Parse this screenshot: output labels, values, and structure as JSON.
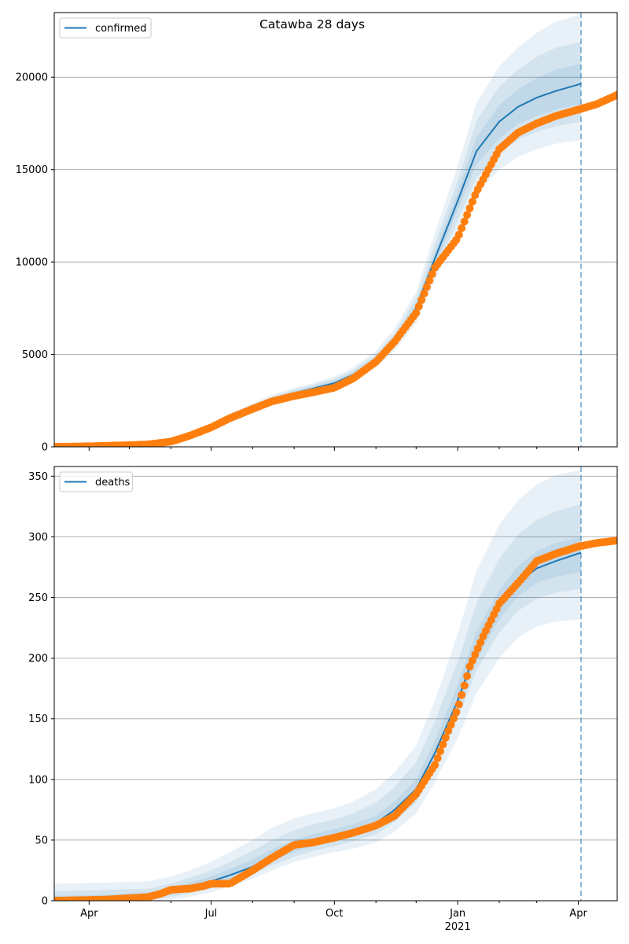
{
  "figure": {
    "title": "Catawba 28 days",
    "colors": {
      "line": "#1f77b4",
      "band": "#1f77b4",
      "points": "#ff7f0e",
      "grid": "#b0b0b0",
      "vline": "#1f77b4"
    }
  },
  "chart_data": [
    {
      "type": "line",
      "legend": {
        "label": "confirmed",
        "placement": "top-left"
      },
      "x_range": [
        "2020-03-06",
        "2021-04-30"
      ],
      "ylim": [
        0,
        23500
      ],
      "yticks": [
        0,
        5000,
        10000,
        15000,
        20000
      ],
      "ytick_labels": [
        "0",
        "5000",
        "10000",
        "15000",
        "20000"
      ],
      "grid": "y",
      "forecast_start": "2021-04-03",
      "series": [
        {
          "name": "confirmed",
          "kind": "model",
          "x": [
            "2020-03-06",
            "2020-04-15",
            "2020-05-15",
            "2020-06-01",
            "2020-06-15",
            "2020-07-01",
            "2020-07-15",
            "2020-08-01",
            "2020-08-15",
            "2020-09-01",
            "2020-09-15",
            "2020-10-01",
            "2020-10-15",
            "2020-11-01",
            "2020-11-15",
            "2020-12-01",
            "2020-12-15",
            "2021-01-01",
            "2021-01-15",
            "2021-02-01",
            "2021-02-15",
            "2021-03-01",
            "2021-03-15",
            "2021-04-03"
          ],
          "y": [
            20,
            40,
            80,
            250,
            550,
            1000,
            1500,
            2050,
            2500,
            2900,
            3150,
            3450,
            3900,
            4700,
            5750,
            7500,
            10200,
            13300,
            16000,
            17600,
            18400,
            18900,
            19250,
            19650
          ],
          "bands": [
            {
              "lower": [
                0,
                0,
                40,
                170,
                430,
                850,
                1300,
                1800,
                2250,
                2650,
                2900,
                3200,
                3600,
                4300,
                5200,
                6700,
                9000,
                11600,
                13700,
                15000,
                15700,
                16100,
                16400,
                16600
              ],
              "upper": [
                150,
                180,
                230,
                420,
                780,
                1250,
                1800,
                2350,
                2800,
                3200,
                3450,
                3800,
                4300,
                5200,
                6400,
                8400,
                11600,
                15200,
                18600,
                20600,
                21600,
                22400,
                23000,
                23400
              ]
            },
            {
              "lower": [
                0,
                10,
                50,
                190,
                460,
                890,
                1350,
                1870,
                2320,
                2720,
                2980,
                3270,
                3700,
                4430,
                5380,
                7000,
                9450,
                12250,
                14550,
                15900,
                16600,
                17050,
                17350,
                17600
              ],
              "upper": [
                100,
                120,
                170,
                360,
                700,
                1160,
                1700,
                2250,
                2700,
                3100,
                3350,
                3680,
                4150,
                5000,
                6150,
                8050,
                11000,
                14400,
                17650,
                19500,
                20400,
                21100,
                21600,
                21900
              ]
            },
            {
              "lower": [
                5,
                20,
                60,
                210,
                490,
                930,
                1400,
                1940,
                2390,
                2790,
                3050,
                3340,
                3780,
                4550,
                5550,
                7250,
                9800,
                12800,
                15300,
                16700,
                17450,
                17900,
                18250,
                18550
              ],
              "upper": [
                60,
                80,
                130,
                310,
                640,
                1090,
                1620,
                2180,
                2620,
                3020,
                3260,
                3580,
                4040,
                4860,
                5950,
                7750,
                10550,
                13800,
                16750,
                18500,
                19350,
                19950,
                20400,
                20750
              ]
            }
          ]
        },
        {
          "name": "",
          "kind": "observed",
          "x": [
            "2020-03-06",
            "2020-04-01",
            "2020-04-15",
            "2020-05-01",
            "2020-05-15",
            "2020-06-01",
            "2020-06-15",
            "2020-07-01",
            "2020-07-15",
            "2020-08-01",
            "2020-08-15",
            "2020-09-01",
            "2020-09-15",
            "2020-10-01",
            "2020-10-15",
            "2020-11-01",
            "2020-11-15",
            "2020-12-01",
            "2020-12-15",
            "2021-01-01",
            "2021-01-15",
            "2021-02-01",
            "2021-02-15",
            "2021-03-01",
            "2021-03-15",
            "2021-04-01",
            "2021-04-15",
            "2021-04-30"
          ],
          "y": [
            0,
            30,
            60,
            90,
            130,
            280,
            600,
            1050,
            1550,
            2050,
            2450,
            2750,
            2950,
            3200,
            3700,
            4600,
            5700,
            7250,
            9700,
            11300,
            13800,
            16100,
            17000,
            17500,
            17900,
            18250,
            18550,
            19050
          ]
        }
      ]
    },
    {
      "type": "line",
      "legend": {
        "label": "deaths",
        "placement": "top-left"
      },
      "x_range": [
        "2020-03-06",
        "2021-04-30"
      ],
      "x_ticks": [
        "2020-04-01",
        "2020-07-01",
        "2020-10-01",
        "2021-01-01",
        "2021-04-01"
      ],
      "x_tick_labels": [
        "Apr",
        "Jul",
        "Oct",
        "Jan",
        "Apr"
      ],
      "x_year_label": {
        "at": "2021-01-01",
        "text": "2021"
      },
      "ylim": [
        0,
        358
      ],
      "yticks": [
        0,
        50,
        100,
        150,
        200,
        250,
        300,
        350
      ],
      "ytick_labels": [
        "0",
        "50",
        "100",
        "150",
        "200",
        "250",
        "300",
        "350"
      ],
      "grid": "y",
      "forecast_start": "2021-04-03",
      "series": [
        {
          "name": "deaths",
          "kind": "model",
          "x": [
            "2020-03-06",
            "2020-04-15",
            "2020-05-15",
            "2020-06-01",
            "2020-06-15",
            "2020-07-01",
            "2020-07-15",
            "2020-08-01",
            "2020-08-15",
            "2020-09-01",
            "2020-09-15",
            "2020-10-01",
            "2020-10-15",
            "2020-11-01",
            "2020-11-15",
            "2020-12-01",
            "2020-12-15",
            "2021-01-01",
            "2021-01-15",
            "2021-02-01",
            "2021-02-15",
            "2021-03-01",
            "2021-03-15",
            "2021-04-03"
          ],
          "y": [
            1,
            2,
            4,
            8,
            12,
            16,
            21,
            28,
            36,
            44,
            49,
            53,
            57,
            64,
            75,
            92,
            122,
            165,
            208,
            242,
            262,
            274,
            280,
            287
          ],
          "bands": [
            {
              "lower": [
                0,
                0,
                0,
                1,
                3,
                7,
                12,
                18,
                25,
                32,
                36,
                40,
                43,
                48,
                57,
                72,
                98,
                134,
                171,
                200,
                217,
                226,
                230,
                232
              ],
              "upper": [
                14,
                15,
                16,
                20,
                25,
                32,
                40,
                50,
                60,
                68,
                72,
                76,
                82,
                92,
                106,
                128,
                165,
                220,
                272,
                310,
                330,
                343,
                351,
                355
              ]
            },
            {
              "lower": [
                0,
                0,
                1,
                3,
                6,
                10,
                15,
                22,
                29,
                36,
                41,
                45,
                49,
                55,
                65,
                81,
                110,
                150,
                190,
                221,
                239,
                249,
                254,
                257
              ],
              "upper": [
                8,
                9,
                10,
                14,
                19,
                25,
                32,
                41,
                50,
                58,
                63,
                67,
                72,
                81,
                94,
                114,
                148,
                197,
                245,
                282,
                302,
                314,
                321,
                327
              ]
            },
            {
              "lower": [
                0,
                1,
                2,
                5,
                9,
                13,
                18,
                25,
                33,
                40,
                45,
                49,
                53,
                60,
                70,
                87,
                116,
                158,
                199,
                232,
                251,
                262,
                267,
                271
              ],
              "upper": [
                4,
                5,
                7,
                11,
                15,
                20,
                26,
                34,
                42,
                50,
                55,
                59,
                63,
                70,
                82,
                100,
                132,
                178,
                222,
                256,
                276,
                288,
                295,
                300
              ]
            }
          ]
        },
        {
          "name": "",
          "kind": "observed",
          "x": [
            "2020-03-06",
            "2020-04-15",
            "2020-05-15",
            "2020-05-25",
            "2020-06-01",
            "2020-06-15",
            "2020-06-25",
            "2020-07-01",
            "2020-07-15",
            "2020-08-01",
            "2020-08-15",
            "2020-09-01",
            "2020-09-15",
            "2020-10-01",
            "2020-10-15",
            "2020-11-01",
            "2020-11-15",
            "2020-12-01",
            "2020-12-15",
            "2020-12-25",
            "2021-01-01",
            "2021-01-10",
            "2021-01-20",
            "2021-02-01",
            "2021-02-15",
            "2021-03-01",
            "2021-03-15",
            "2021-04-01",
            "2021-04-15",
            "2021-04-30"
          ],
          "y": [
            0,
            1,
            3,
            6,
            9,
            10,
            12,
            14,
            14,
            25,
            35,
            46,
            48,
            52,
            56,
            62,
            70,
            88,
            112,
            140,
            158,
            193,
            218,
            245,
            262,
            280,
            286,
            292,
            295,
            297
          ]
        }
      ]
    }
  ]
}
